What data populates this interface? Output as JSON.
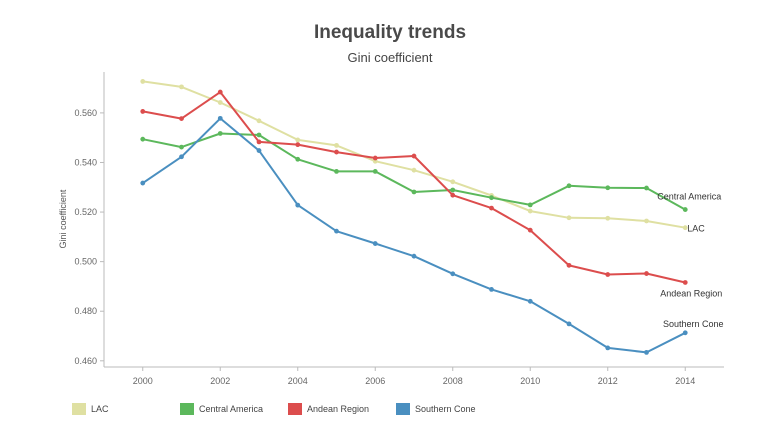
{
  "chart_data": {
    "type": "line",
    "title": "Inequality trends",
    "subtitle": "Gini coefficient",
    "xlabel": "",
    "ylabel": "Gini coefficient",
    "x": [
      2000,
      2001,
      2002,
      2003,
      2004,
      2005,
      2006,
      2007,
      2008,
      2009,
      2010,
      2011,
      2012,
      2013,
      2014
    ],
    "xticks": [
      "2000",
      "2002",
      "2004",
      "2006",
      "2008",
      "2010",
      "2012",
      "2014"
    ],
    "yticks": [
      "0.460",
      "0.480",
      "0.500",
      "0.520",
      "0.540",
      "0.560"
    ],
    "xlim": [
      1999.0,
      2015.0
    ],
    "ylim": [
      0.4575,
      0.5765
    ],
    "grid": false,
    "legend_position": "bottom",
    "series": [
      {
        "name": "LAC",
        "color": "#dfe0a2",
        "values": [
          0.5727,
          0.5705,
          0.5642,
          0.5568,
          0.5491,
          0.5469,
          0.5405,
          0.5369,
          0.5322,
          0.5267,
          0.5204,
          0.5177,
          0.5175,
          0.5164,
          0.5137
        ]
      },
      {
        "name": "Central America",
        "color": "#5cb85c",
        "values": [
          0.5494,
          0.5462,
          0.5517,
          0.5511,
          0.5413,
          0.5364,
          0.5364,
          0.5281,
          0.5289,
          0.5258,
          0.5229,
          0.5306,
          0.5298,
          0.5297,
          0.521
        ]
      },
      {
        "name": "Andean Region",
        "color": "#dc4d4d",
        "values": [
          0.5606,
          0.5577,
          0.5684,
          0.5483,
          0.5472,
          0.5442,
          0.5418,
          0.5426,
          0.5268,
          0.5216,
          0.5127,
          0.4985,
          0.4948,
          0.4952,
          0.4916
        ]
      },
      {
        "name": "Southern Cone",
        "color": "#4a8fc0",
        "values": [
          0.5317,
          0.5423,
          0.5578,
          0.5448,
          0.5228,
          0.5123,
          0.5073,
          0.5022,
          0.4951,
          0.4888,
          0.484,
          0.4749,
          0.4652,
          0.4634,
          0.4713
        ]
      }
    ],
    "end_labels": [
      "LAC",
      "Central America",
      "Andean Region",
      "Southern Cone"
    ]
  }
}
